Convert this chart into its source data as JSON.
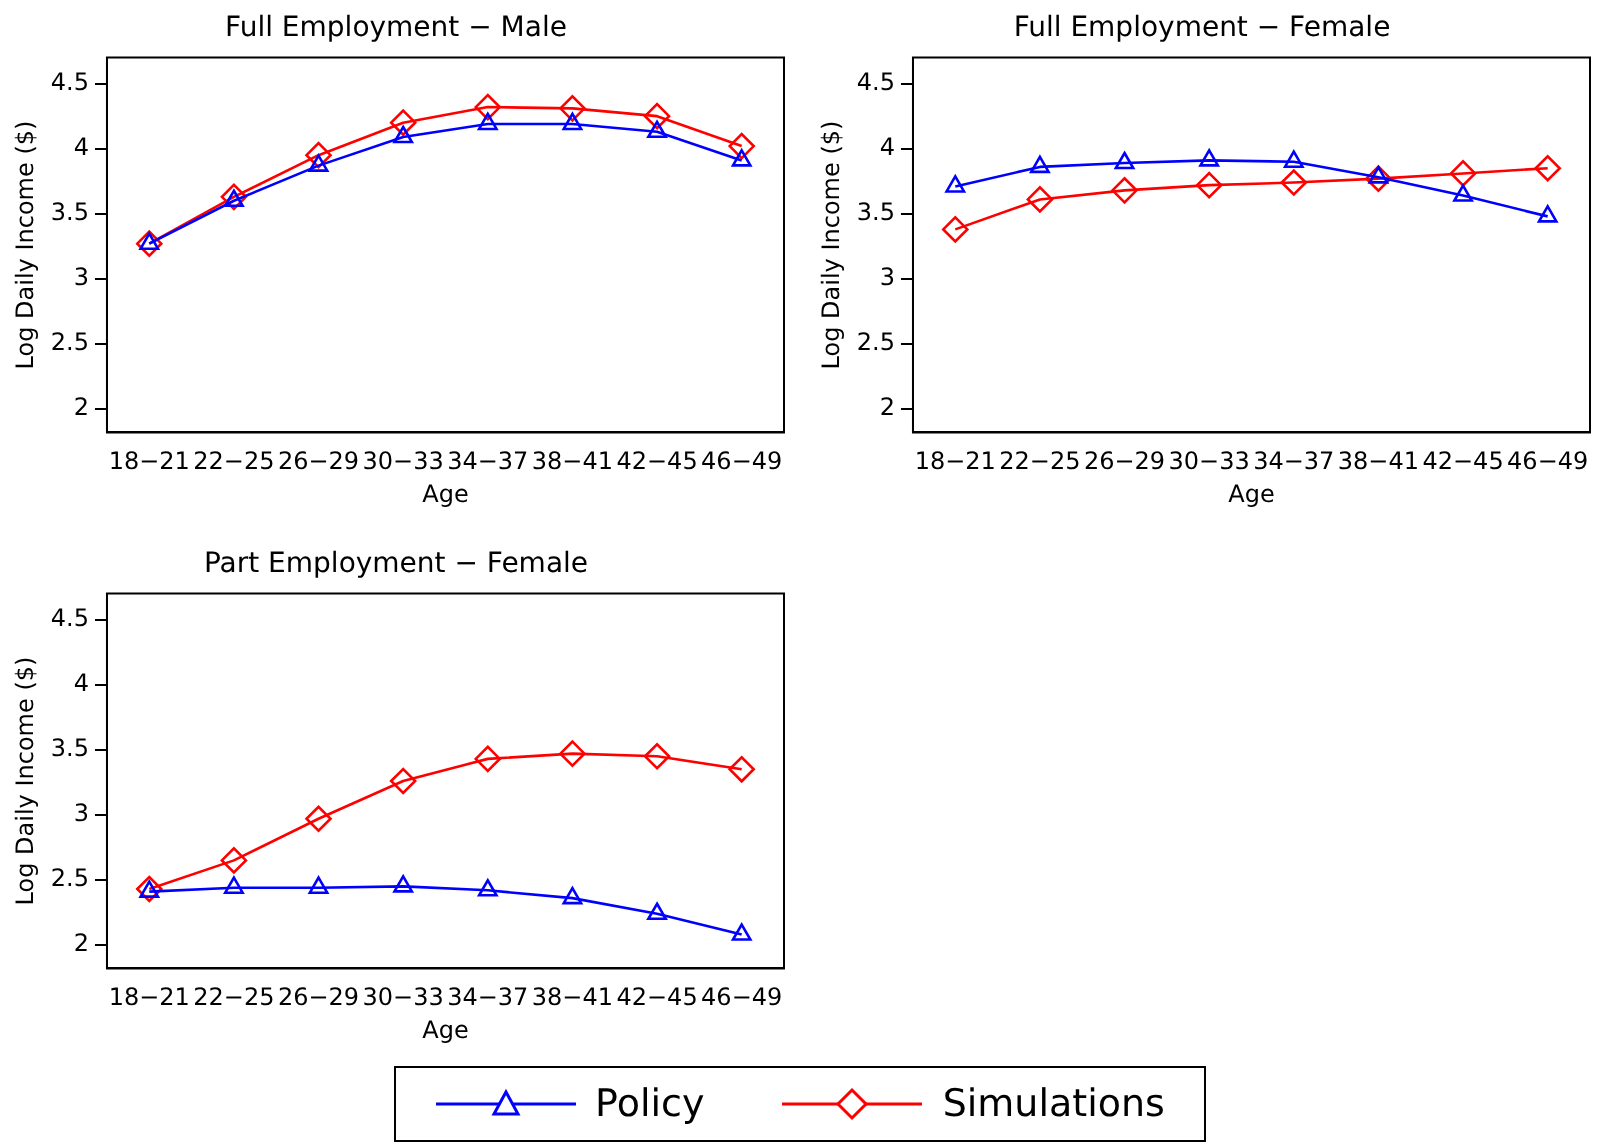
{
  "chart_data": [
    {
      "type": "line",
      "title": "Full Employment − Male",
      "xlabel": "Age",
      "ylabel": "Log Daily Income ($)",
      "categories": [
        "18−21",
        "22−25",
        "26−29",
        "30−33",
        "34−37",
        "38−41",
        "42−45",
        "46−49"
      ],
      "series": [
        {
          "name": "Policy",
          "color": "#0000ff",
          "marker": "triangle",
          "values": [
            3.27,
            3.6,
            3.87,
            4.09,
            4.19,
            4.19,
            4.13,
            3.91
          ]
        },
        {
          "name": "Simulations",
          "color": "#ff0000",
          "marker": "diamond",
          "values": [
            3.27,
            3.63,
            3.95,
            4.2,
            4.32,
            4.31,
            4.25,
            4.02
          ]
        }
      ],
      "ylim": [
        1.82,
        4.7
      ],
      "yticks": [
        2,
        2.5,
        3,
        3.5,
        4,
        4.5
      ],
      "legend": "bottom"
    },
    {
      "type": "line",
      "title": "Full Employment − Female",
      "xlabel": "Age",
      "ylabel": "Log Daily Income ($)",
      "categories": [
        "18−21",
        "22−25",
        "26−29",
        "30−33",
        "34−37",
        "38−41",
        "42−45",
        "46−49"
      ],
      "series": [
        {
          "color": "#0000ff",
          "marker": "triangle",
          "values": [
            3.71,
            3.86,
            3.89,
            3.91,
            3.9,
            3.78,
            3.64,
            3.48
          ]
        },
        {
          "color": "#ff0000",
          "marker": "diamond",
          "values": [
            3.38,
            3.61,
            3.68,
            3.72,
            3.74,
            3.77,
            3.81,
            3.85
          ]
        }
      ],
      "ylim": [
        1.82,
        4.7
      ],
      "yticks": [
        2,
        2.5,
        3,
        3.5,
        4,
        4.5
      ]
    },
    {
      "type": "line",
      "title": "Part Employment − Female",
      "xlabel": "Age",
      "ylabel": "Log Daily Income ($)",
      "categories": [
        "18−21",
        "22−25",
        "26−29",
        "30−33",
        "34−37",
        "38−41",
        "42−45",
        "46−49"
      ],
      "series": [
        {
          "color": "#0000ff",
          "marker": "triangle",
          "values": [
            2.41,
            2.44,
            2.44,
            2.45,
            2.42,
            2.36,
            2.24,
            2.08
          ]
        },
        {
          "color": "#ff0000",
          "marker": "diamond",
          "values": [
            2.43,
            2.65,
            2.97,
            3.26,
            3.43,
            3.47,
            3.45,
            3.35
          ]
        }
      ],
      "ylim": [
        1.82,
        4.7
      ],
      "yticks": [
        2,
        2.5,
        3,
        3.5,
        4,
        4.5
      ]
    }
  ]
}
